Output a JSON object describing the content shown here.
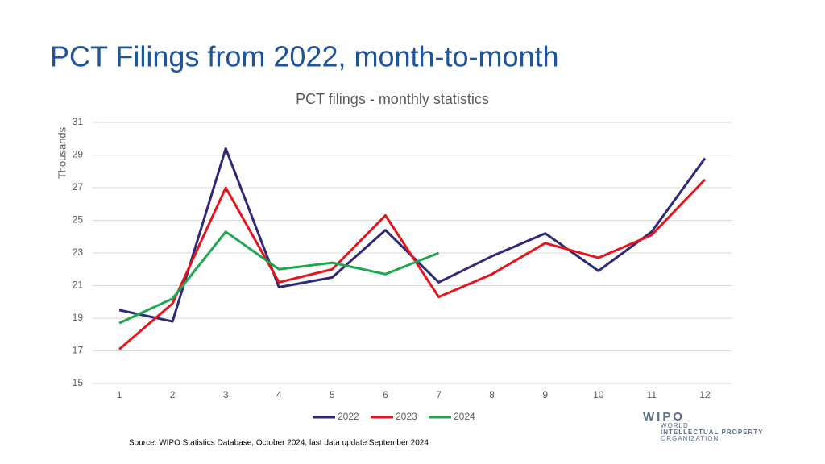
{
  "title": "PCT Filings from 2022, month-to-month",
  "source": "Source:  WIPO Statistics Database, October 2024, last data update September 2024",
  "logo": {
    "name": "WIPO",
    "lines": [
      "WORLD",
      "INTELLECTUAL PROPERTY",
      "ORGANIZATION"
    ]
  },
  "chart_data": {
    "type": "line",
    "title": "PCT filings - monthly statistics",
    "y_label": "Thousands",
    "categories": [
      "1",
      "2",
      "3",
      "4",
      "5",
      "6",
      "7",
      "8",
      "9",
      "10",
      "11",
      "12"
    ],
    "series": [
      {
        "name": "2022",
        "color": "#2e2a7a",
        "values": [
          19.5,
          18.8,
          29.4,
          20.9,
          21.5,
          24.4,
          21.2,
          22.8,
          24.2,
          21.9,
          24.3,
          28.8
        ]
      },
      {
        "name": "2023",
        "color": "#e8141c",
        "values": [
          17.1,
          19.9,
          27.0,
          21.2,
          22.0,
          25.3,
          20.3,
          21.7,
          23.6,
          22.7,
          24.1,
          27.5
        ]
      },
      {
        "name": "2024",
        "color": "#1fa84f",
        "values": [
          18.7,
          20.2,
          24.3,
          22.0,
          22.4,
          21.7,
          23.0,
          null,
          null,
          null,
          null,
          null
        ]
      }
    ],
    "ylim": [
      15,
      31
    ],
    "yticks": [
      15,
      17,
      19,
      21,
      23,
      25,
      27,
      29,
      31
    ],
    "grid": true,
    "legend": "bottom"
  }
}
